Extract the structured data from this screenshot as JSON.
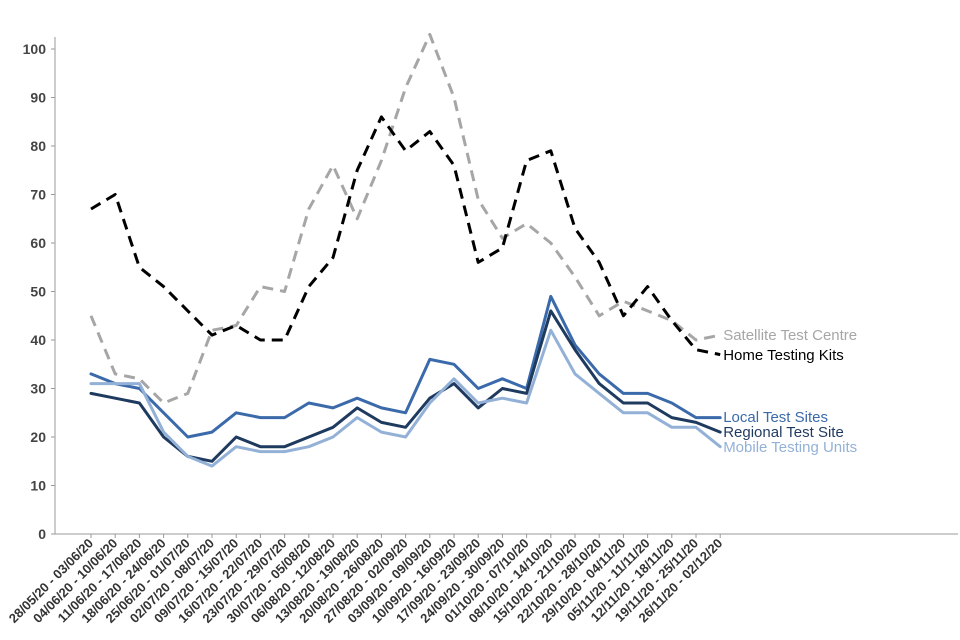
{
  "chart_data": {
    "type": "line",
    "categories": [
      "28/05/20 - 03/06/20",
      "04/06/20 - 10/06/20",
      "11/06/20 - 17/06/20",
      "18/06/20 - 24/06/20",
      "25/06/20 - 01/07/20",
      "02/07/20 - 08/07/20",
      "09/07/20 - 15/07/20",
      "16/07/20 - 22/07/20",
      "23/07/20 - 29/07/20",
      "30/07/20 - 05/08/20",
      "06/08/20 - 12/08/20",
      "13/08/20 - 19/08/20",
      "20/08/20 - 26/08/20",
      "27/08/20 - 02/09/20",
      "03/09/20 - 09/09/20",
      "10/09/20 - 16/09/20",
      "17/09/20 - 23/09/20",
      "24/09/20 - 30/09/20",
      "01/10/20 - 07/10/20",
      "08/10/20 - 14/10/20",
      "15/10/20 - 21/10/20",
      "22/10/20 - 28/10/20",
      "29/10/20 - 04/11/20",
      "05/11/20 - 11/11/20",
      "12/11/20 - 18/11/20",
      "19/11/20 - 25/11/20",
      "26/11/20 - 02/12/20"
    ],
    "yticks": [
      "0",
      "10",
      "20",
      "30",
      "40",
      "50",
      "60",
      "70",
      "80",
      "90",
      "100"
    ],
    "ylim": [
      0,
      100
    ],
    "grid": false,
    "series": [
      {
        "name": "Satellite Test Centre",
        "color": "#a6a6a6",
        "style": "dashed",
        "values": [
          45,
          33,
          32,
          27,
          29,
          42,
          43,
          51,
          50,
          67,
          76,
          65,
          77,
          92,
          103,
          90,
          69,
          61,
          64,
          60,
          53,
          45,
          48,
          46,
          44,
          40,
          41
        ]
      },
      {
        "name": "Home Testing Kits",
        "color": "#000000",
        "style": "dashed",
        "values": [
          67,
          70,
          55,
          51,
          46,
          41,
          43,
          40,
          40,
          51,
          57,
          75,
          86,
          79,
          83,
          76,
          56,
          59,
          77,
          79,
          63,
          56,
          45,
          51,
          44,
          38,
          37
        ]
      },
      {
        "name": "Local Test Sites",
        "color": "#3b6aaa",
        "style": "solid",
        "values": [
          33,
          31,
          30,
          25,
          20,
          21,
          25,
          24,
          24,
          27,
          26,
          28,
          26,
          25,
          36,
          35,
          30,
          32,
          30,
          49,
          39,
          33,
          29,
          29,
          27,
          24,
          24
        ]
      },
      {
        "name": "Regional Test Site",
        "color": "#1f3a5f",
        "style": "solid",
        "values": [
          29,
          28,
          27,
          20,
          16,
          15,
          20,
          18,
          18,
          20,
          22,
          26,
          23,
          22,
          28,
          31,
          26,
          30,
          29,
          46,
          38,
          31,
          27,
          27,
          24,
          23,
          21
        ]
      },
      {
        "name": "Mobile Testing Units",
        "color": "#93b1d7",
        "style": "solid",
        "values": [
          31,
          31,
          31,
          21,
          16,
          14,
          18,
          17,
          17,
          18,
          20,
          24,
          21,
          20,
          27,
          32,
          27,
          28,
          27,
          42,
          33,
          29,
          25,
          25,
          22,
          22,
          18
        ]
      }
    ]
  }
}
